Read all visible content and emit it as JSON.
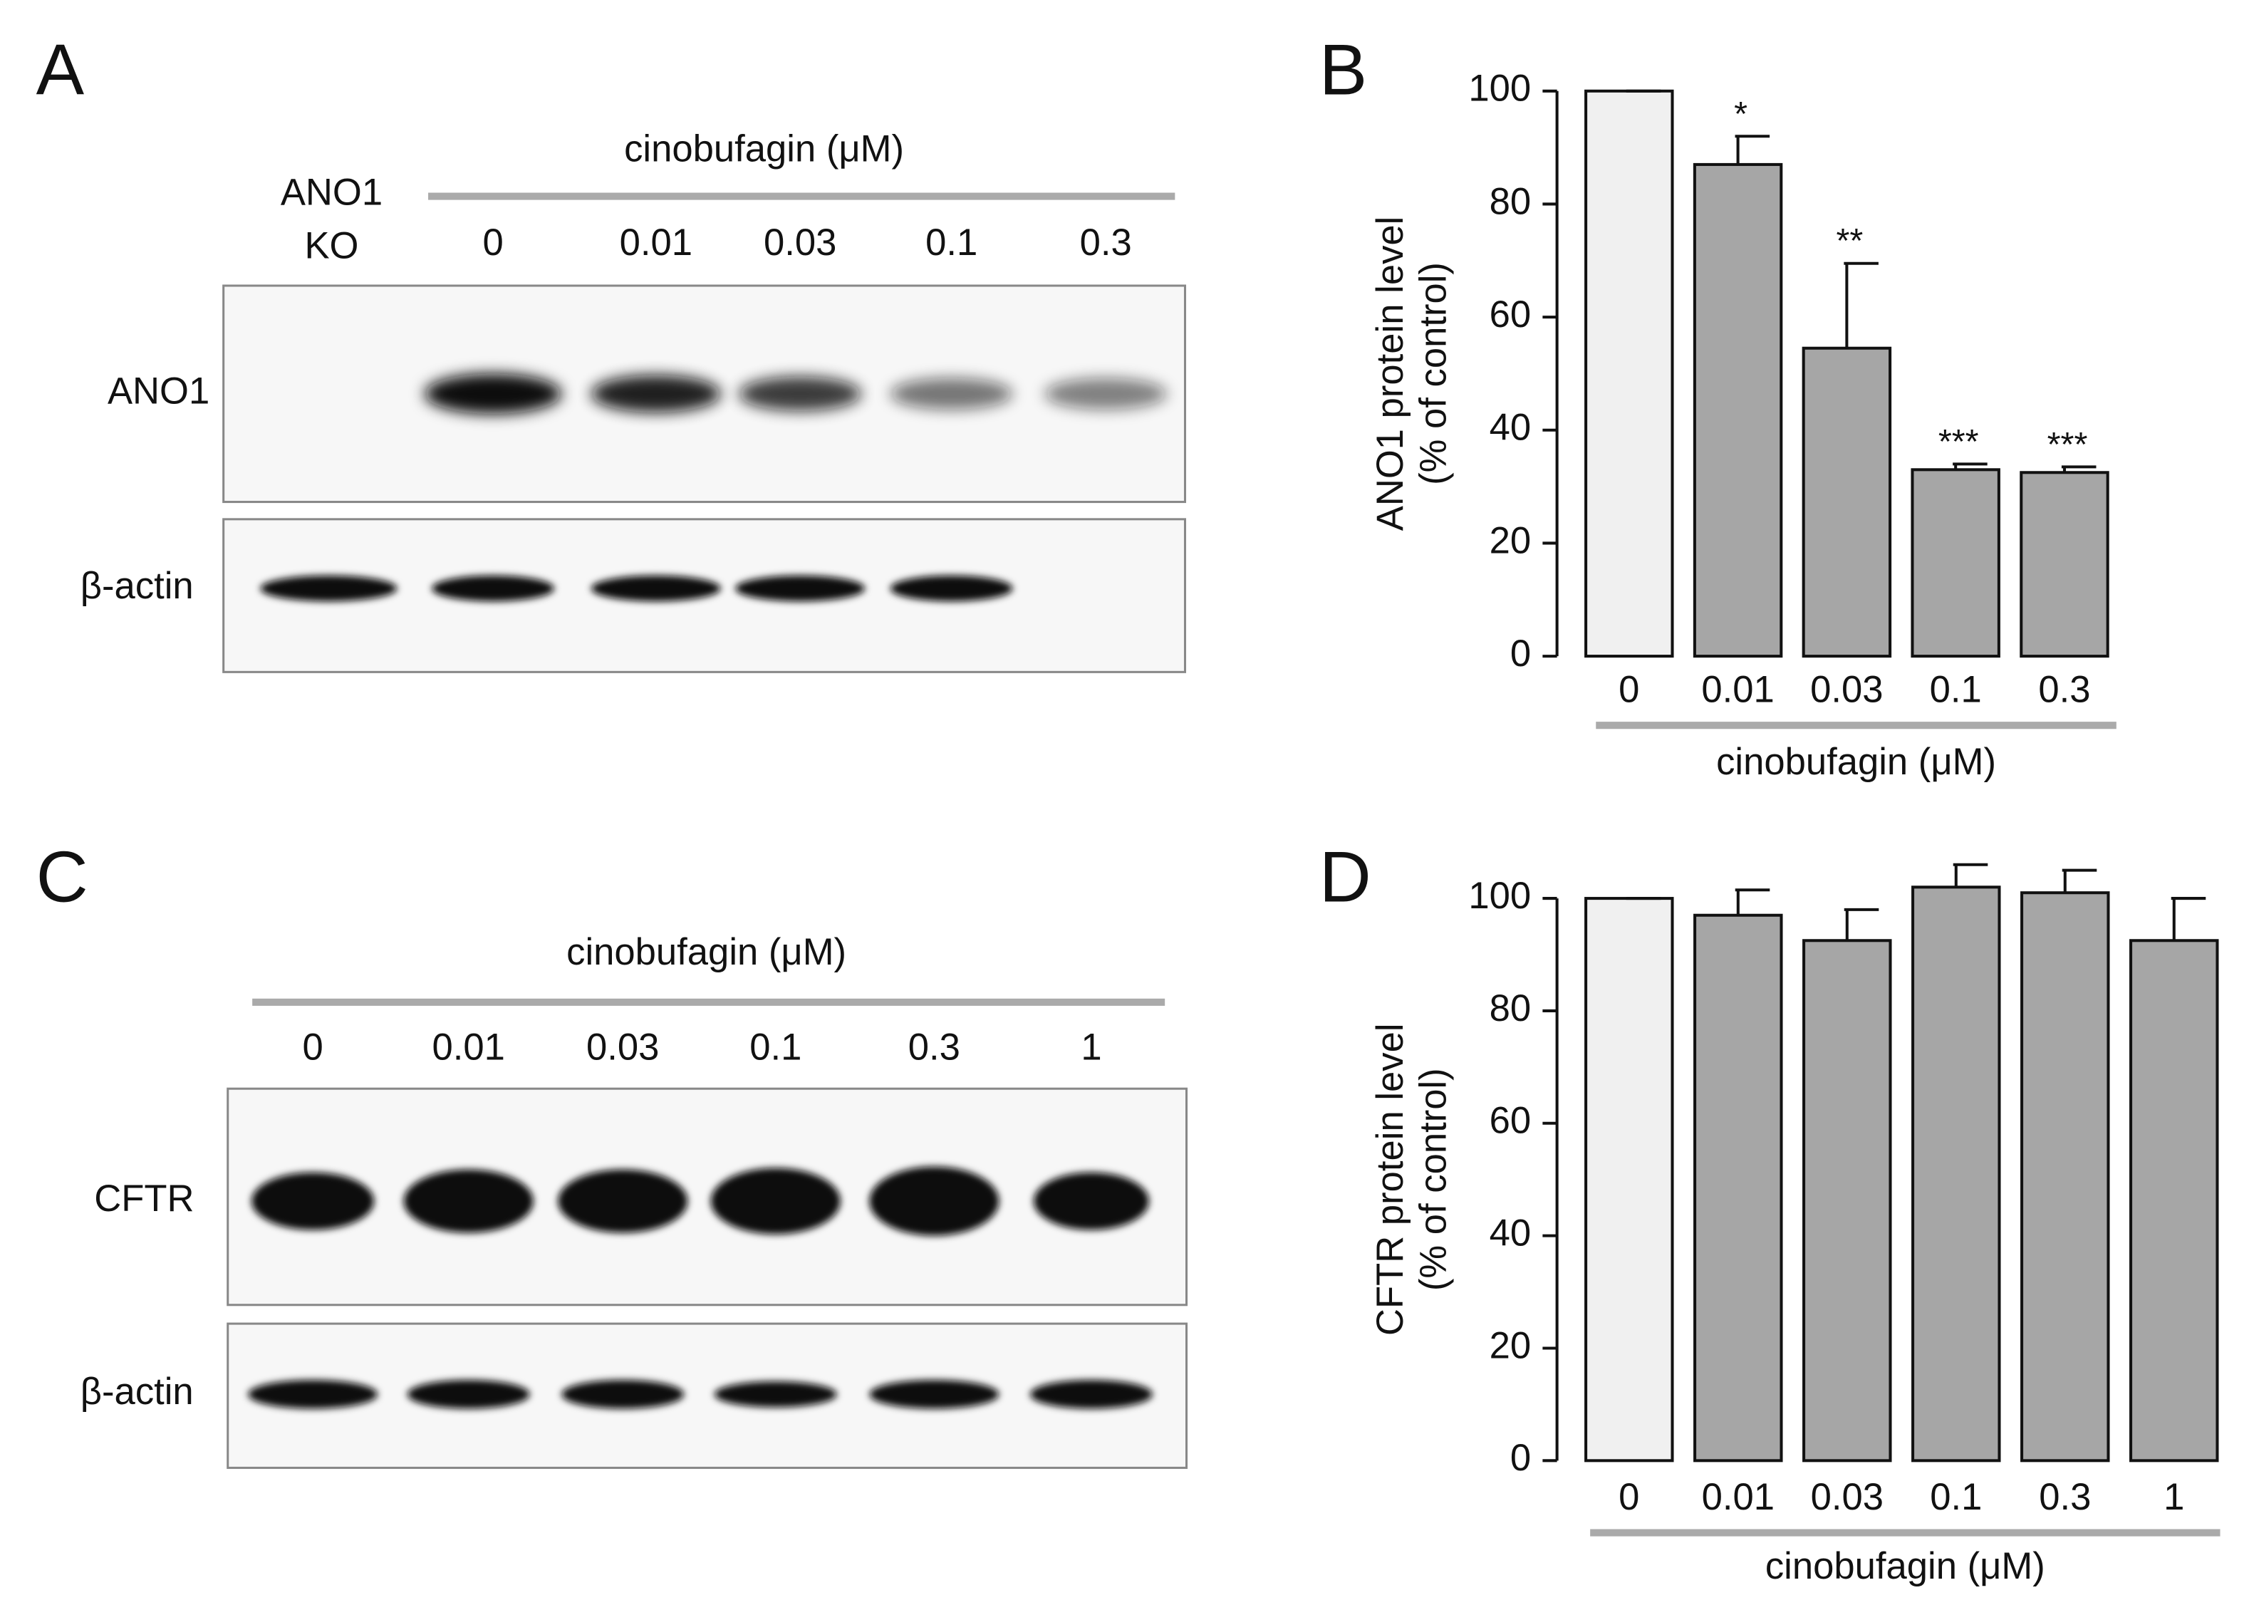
{
  "panels": {
    "A": {
      "letter": "A",
      "ko_label": [
        "ANO1",
        "KO"
      ],
      "treatment": "cinobufagin (μM)",
      "lanes": [
        "0",
        "0.01",
        "0.03",
        "0.1",
        "0.3"
      ],
      "rows": [
        "ANO1",
        "β-actin"
      ]
    },
    "C": {
      "letter": "C",
      "treatment": "cinobufagin (μM)",
      "lanes": [
        "0",
        "0.01",
        "0.03",
        "0.1",
        "0.3",
        "1"
      ],
      "rows": [
        "CFTR",
        "β-actin"
      ]
    }
  },
  "chart_data": [
    {
      "type": "bar",
      "letter": "B",
      "ylabel": [
        "ANO1 protein level",
        "(% of control)"
      ],
      "xlabel": "cinobufagin (μM)",
      "categories": [
        "0",
        "0.01",
        "0.03",
        "0.1",
        "0.3"
      ],
      "values": [
        100,
        87,
        54.5,
        33,
        32.5
      ],
      "errors": [
        0,
        5,
        15,
        1,
        1
      ],
      "annotations": [
        null,
        "*",
        "**",
        "***",
        "***"
      ],
      "colors": [
        "#f0f0f0",
        "#a6a6a6",
        "#a6a6a6",
        "#a6a6a6",
        "#a6a6a6"
      ],
      "ylim": [
        0,
        100
      ],
      "yticks": [
        0,
        20,
        40,
        60,
        80,
        100
      ]
    },
    {
      "type": "bar",
      "letter": "D",
      "ylabel": [
        "CFTR protein level",
        "(% of control)"
      ],
      "xlabel": "cinobufagin (μM)",
      "categories": [
        "0",
        "0.01",
        "0.03",
        "0.1",
        "0.3",
        "1"
      ],
      "values": [
        100,
        97,
        92.5,
        102,
        101,
        92.5
      ],
      "errors": [
        0,
        4.5,
        5.5,
        4,
        4,
        7.5
      ],
      "colors": [
        "#f0f0f0",
        "#a6a6a6",
        "#a6a6a6",
        "#a6a6a6",
        "#a6a6a6",
        "#a6a6a6"
      ],
      "ylim": [
        0,
        100
      ],
      "yticks": [
        0,
        20,
        40,
        60,
        80,
        100
      ]
    }
  ]
}
